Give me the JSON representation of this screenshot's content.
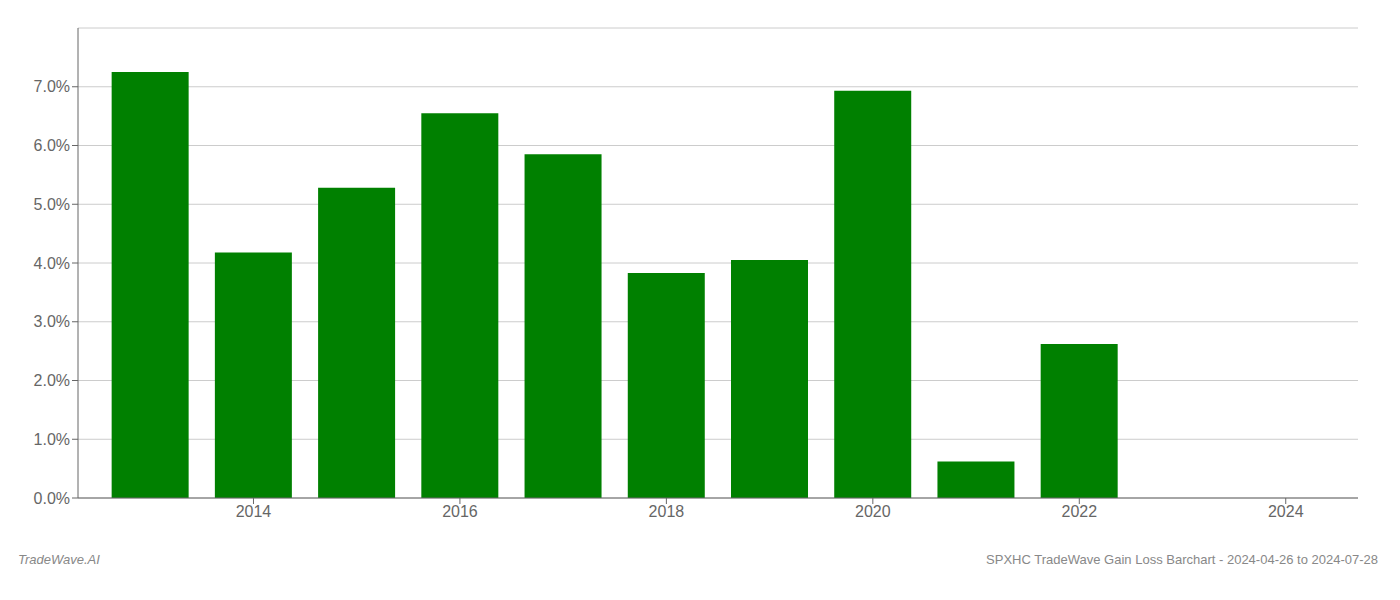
{
  "chart_data": {
    "type": "bar",
    "x": [
      2013,
      2014,
      2015,
      2016,
      2017,
      2018,
      2019,
      2020,
      2021,
      2022,
      2023
    ],
    "values": [
      0.0725,
      0.0418,
      0.0528,
      0.0655,
      0.0585,
      0.0383,
      0.0405,
      0.0693,
      0.0062,
      0.0262,
      0.0
    ],
    "color": "#008000",
    "xlim": [
      2012.3,
      2024.7
    ],
    "xticks": [
      2014,
      2016,
      2018,
      2020,
      2022,
      2024
    ],
    "ylim": [
      0,
      0.08
    ],
    "yticks": [
      {
        "value": 0.0,
        "label": "0.0%"
      },
      {
        "value": 0.01,
        "label": "1.0%"
      },
      {
        "value": 0.02,
        "label": "2.0%"
      },
      {
        "value": 0.03,
        "label": "3.0%"
      },
      {
        "value": 0.04,
        "label": "4.0%"
      },
      {
        "value": 0.05,
        "label": "5.0%"
      },
      {
        "value": 0.06,
        "label": "6.0%"
      },
      {
        "value": 0.07,
        "label": "7.0%"
      }
    ],
    "grid": true,
    "annotations": [
      "TradeWave.AI",
      "SPXHC TradeWave Gain Loss Barchart - 2024-04-26 to 2024-07-28"
    ]
  }
}
